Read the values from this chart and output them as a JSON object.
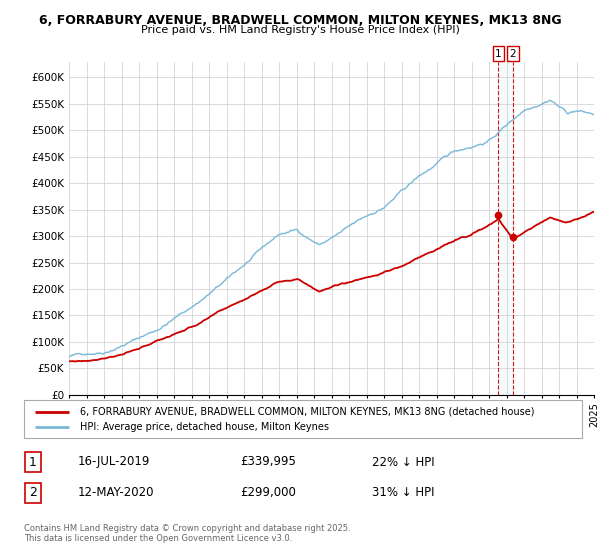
{
  "title_line1": "6, FORRABURY AVENUE, BRADWELL COMMON, MILTON KEYNES, MK13 8NG",
  "title_line2": "Price paid vs. HM Land Registry's House Price Index (HPI)",
  "legend_line1": "6, FORRABURY AVENUE, BRADWELL COMMON, MILTON KEYNES, MK13 8NG (detached house)",
  "legend_line2": "HPI: Average price, detached house, Milton Keynes",
  "annotation1_date": "16-JUL-2019",
  "annotation1_price": "£339,995",
  "annotation1_hpi": "22% ↓ HPI",
  "annotation2_date": "12-MAY-2020",
  "annotation2_price": "£299,000",
  "annotation2_hpi": "31% ↓ HPI",
  "footnote": "Contains HM Land Registry data © Crown copyright and database right 2025.\nThis data is licensed under the Open Government Licence v3.0.",
  "hpi_color": "#7ab8d9",
  "price_color": "#cc0000",
  "dashed_line_color": "#cc0000",
  "bg_color": "#ffffff",
  "grid_color": "#cccccc",
  "ylim": [
    0,
    630000
  ],
  "ytick_vals": [
    0,
    50000,
    100000,
    150000,
    200000,
    250000,
    300000,
    350000,
    400000,
    450000,
    500000,
    550000,
    600000
  ],
  "ytick_labels": [
    "£0",
    "£50K",
    "£100K",
    "£150K",
    "£200K",
    "£250K",
    "£300K",
    "£350K",
    "£400K",
    "£450K",
    "£500K",
    "£550K",
    "£600K"
  ],
  "marker1_x": 2019.54,
  "marker1_y": 339995,
  "marker2_x": 2020.36,
  "marker2_y": 299000,
  "xlim_start": 1995,
  "xlim_end": 2025
}
